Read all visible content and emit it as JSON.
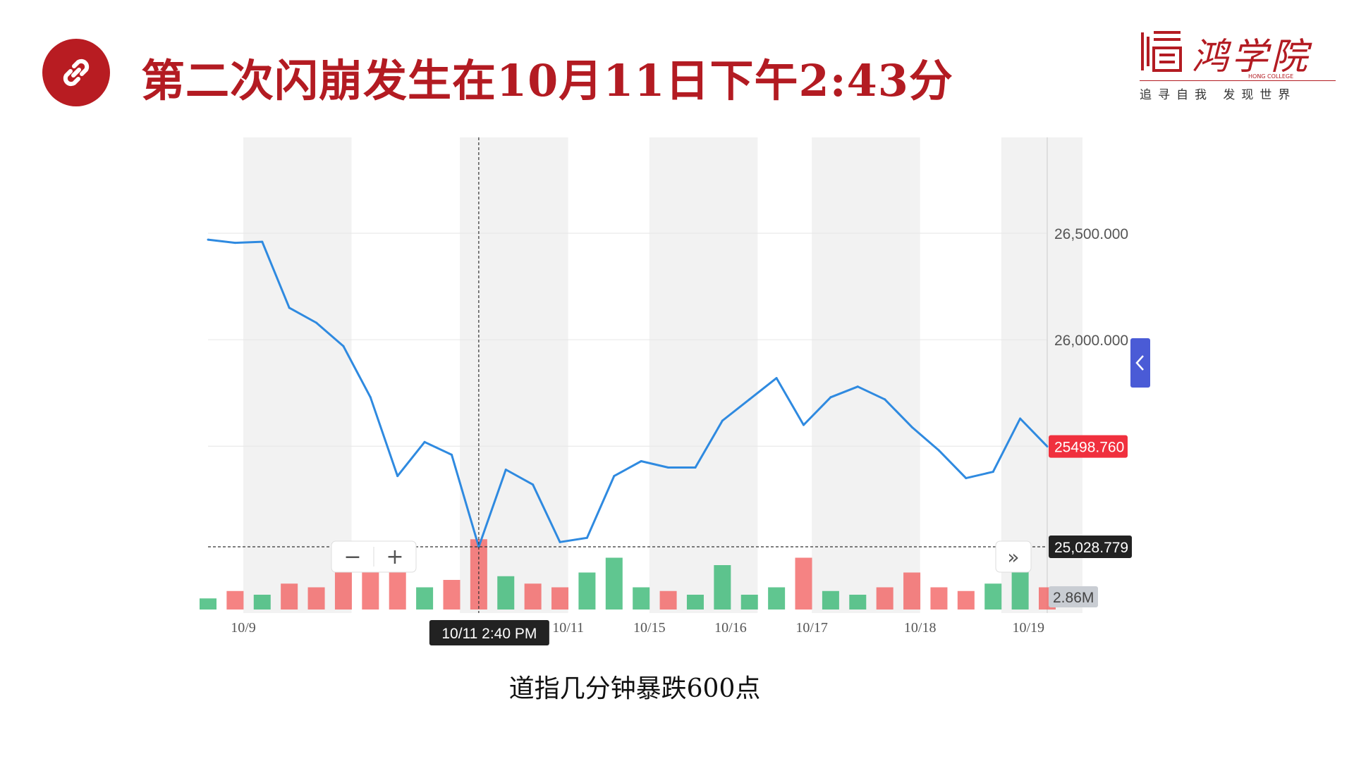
{
  "slide": {
    "title": "第二次闪崩发生在10月11日下午2:43分",
    "caption": "道指几分钟暴跌600点",
    "accent_color": "#b31b22",
    "badge_icon": "link-icon"
  },
  "logo": {
    "name": "鸿学院",
    "sub": "HONG COLLEGE",
    "slogan": "追寻自我 发现世界"
  },
  "chart_data": {
    "type": "line",
    "x": [
      "10/9",
      "10/9 12:00",
      "10/10",
      "10/10 04:00",
      "10/10 08:00",
      "10/10 12:00",
      "10/10 16:00",
      "10/10 20:00",
      "10/11",
      "10/11 06:00",
      "10/11 14:40",
      "10/11 18:00",
      "10/12",
      "10/12 08:00",
      "10/12 16:00",
      "10/15",
      "10/15 08:00",
      "10/15 16:00",
      "10/16",
      "10/16 08:00",
      "10/16 16:00",
      "10/17",
      "10/17 06:00",
      "10/17 12:00",
      "10/17 18:00",
      "10/18",
      "10/18 06:00",
      "10/18 12:00",
      "10/18 18:00",
      "10/19",
      "10/19 06:00",
      "10/19 12:00"
    ],
    "series": [
      {
        "values": [
          26470,
          26455,
          26460,
          26150,
          26080,
          25970,
          25730,
          25360,
          25520,
          25460,
          25028,
          25390,
          25320,
          25050,
          25070,
          25360,
          25430,
          25400,
          25400,
          25620,
          25720,
          25820,
          25600,
          25730,
          25780,
          25720,
          25590,
          25480,
          25350,
          25380,
          25630,
          25499
        ]
      }
    ],
    "x_tick_labels": [
      "10/9",
      "10/10",
      "10/11",
      "10/12",
      "10/15",
      "10/16",
      "10/17",
      "10/18",
      "10/19"
    ],
    "y_tick_labels": [
      "26,500.000",
      "26,000.000"
    ],
    "ylim": [
      24750,
      26950
    ],
    "last_price_label": "25498.760",
    "crosshair_price_label": "25,028.779",
    "crosshair_time_label": "10/11 2:40 PM",
    "volume_label": "2.86M",
    "volume_series": [
      0.15,
      0.25,
      0.2,
      0.35,
      0.3,
      0.6,
      0.9,
      0.5,
      0.3,
      0.4,
      0.95,
      0.45,
      0.35,
      0.3,
      0.5,
      0.7,
      0.3,
      0.25,
      0.2,
      0.6,
      0.2,
      0.3,
      0.7,
      0.25,
      0.2,
      0.3,
      0.5,
      0.3,
      0.25,
      0.35,
      0.6,
      0.3
    ],
    "zoom_out_label": "−",
    "zoom_in_label": "+",
    "scroll_right_label": "»",
    "colors": {
      "line": "#2f8ae0",
      "vol_up": "#2bb36b",
      "vol_down": "#f15a5a",
      "band": "#f2f2f2",
      "price_tag": "#f0303e",
      "cross_tag": "#222222"
    }
  }
}
